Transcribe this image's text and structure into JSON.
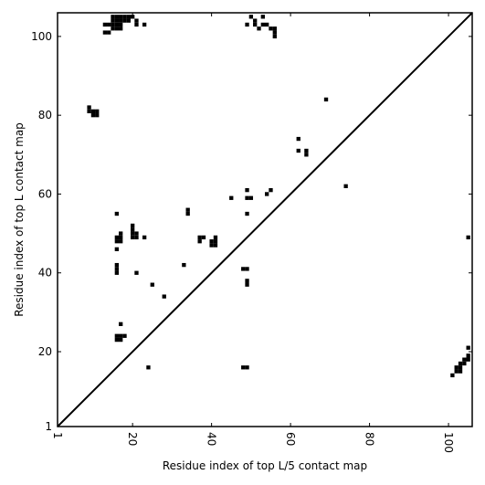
{
  "chart_data": {
    "type": "heatmap",
    "title": "",
    "xlabel": "Residue index of top L/5 contact map",
    "ylabel": "Residue index of top L contact map",
    "xlim": [
      1,
      106
    ],
    "ylim": [
      1,
      106
    ],
    "xticks": [
      1,
      20,
      40,
      60,
      80,
      100
    ],
    "yticks": [
      1,
      20,
      40,
      60,
      80,
      100
    ],
    "xtick_labels": [
      "1",
      "20",
      "40",
      "60",
      "80",
      "100"
    ],
    "ytick_labels": [
      "1",
      "20",
      "40",
      "60",
      "80",
      "100"
    ],
    "x_tick_rotation": "vertical",
    "diagonal_line": true,
    "grid": false,
    "cell_color": "#000000",
    "upper_triangle_contacts": [
      [
        13,
        101
      ],
      [
        14,
        101
      ],
      [
        13,
        103
      ],
      [
        14,
        103
      ],
      [
        15,
        102
      ],
      [
        16,
        102
      ],
      [
        17,
        102
      ],
      [
        15,
        103
      ],
      [
        16,
        103
      ],
      [
        17,
        103
      ],
      [
        15,
        104
      ],
      [
        16,
        104
      ],
      [
        17,
        104
      ],
      [
        18,
        104
      ],
      [
        19,
        104
      ],
      [
        15,
        105
      ],
      [
        16,
        105
      ],
      [
        17,
        105
      ],
      [
        18,
        105
      ],
      [
        19,
        105
      ],
      [
        20,
        105
      ],
      [
        21,
        103
      ],
      [
        21,
        104
      ],
      [
        23,
        103
      ],
      [
        49,
        103
      ],
      [
        50,
        105
      ],
      [
        51,
        103
      ],
      [
        51,
        104
      ],
      [
        52,
        102
      ],
      [
        53,
        103
      ],
      [
        54,
        103
      ],
      [
        55,
        102
      ],
      [
        56,
        101
      ],
      [
        56,
        102
      ],
      [
        56,
        100
      ],
      [
        53,
        105
      ],
      [
        9,
        81
      ],
      [
        9,
        82
      ],
      [
        10,
        80
      ],
      [
        10,
        81
      ],
      [
        11,
        80
      ],
      [
        11,
        81
      ],
      [
        69,
        84
      ],
      [
        62,
        74
      ],
      [
        62,
        71
      ],
      [
        64,
        70
      ],
      [
        64,
        71
      ],
      [
        74,
        62
      ],
      [
        45,
        59
      ],
      [
        49,
        59
      ],
      [
        50,
        59
      ],
      [
        49,
        61
      ],
      [
        54,
        60
      ],
      [
        55,
        61
      ],
      [
        49,
        55
      ],
      [
        34,
        55
      ],
      [
        34,
        56
      ],
      [
        16,
        55
      ],
      [
        16,
        48
      ],
      [
        16,
        49
      ],
      [
        17,
        48
      ],
      [
        17,
        49
      ],
      [
        17,
        50
      ],
      [
        20,
        49
      ],
      [
        20,
        50
      ],
      [
        20,
        51
      ],
      [
        20,
        52
      ],
      [
        21,
        49
      ],
      [
        21,
        50
      ],
      [
        23,
        49
      ],
      [
        16,
        46
      ],
      [
        37,
        48
      ],
      [
        37,
        49
      ],
      [
        38,
        49
      ],
      [
        40,
        47
      ],
      [
        40,
        48
      ],
      [
        41,
        47
      ],
      [
        41,
        48
      ],
      [
        41,
        49
      ],
      [
        16,
        40
      ],
      [
        16,
        41
      ],
      [
        16,
        42
      ],
      [
        21,
        40
      ],
      [
        48,
        41
      ],
      [
        49,
        41
      ],
      [
        49,
        37
      ],
      [
        49,
        38
      ],
      [
        25,
        37
      ],
      [
        28,
        34
      ],
      [
        33,
        42
      ],
      [
        17,
        27
      ],
      [
        16,
        23
      ],
      [
        16,
        24
      ],
      [
        17,
        23
      ],
      [
        17,
        24
      ],
      [
        18,
        24
      ],
      [
        24,
        16
      ],
      [
        48,
        16
      ],
      [
        49,
        16
      ]
    ],
    "lower_triangle_contacts": [
      [
        101,
        14
      ],
      [
        102,
        15
      ],
      [
        102,
        16
      ],
      [
        103,
        15
      ],
      [
        103,
        16
      ],
      [
        103,
        17
      ],
      [
        104,
        17
      ],
      [
        104,
        18
      ],
      [
        105,
        18
      ],
      [
        105,
        19
      ],
      [
        105,
        21
      ],
      [
        105,
        49
      ]
    ]
  }
}
